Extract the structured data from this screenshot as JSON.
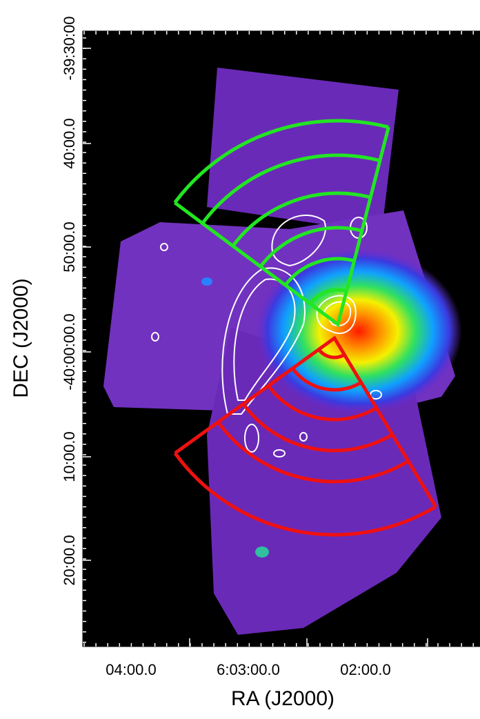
{
  "axes": {
    "x_label": "RA (J2000)",
    "y_label": "DEC (J2000)",
    "x_ticks": [
      "04:00.0",
      "6:03:00.0",
      "02:00.0"
    ],
    "y_ticks": [
      "-39:30:00",
      "40:00.0",
      "50:00.0",
      "-40:00:00.0",
      "10:00.0",
      "20:00.0"
    ]
  }
}
